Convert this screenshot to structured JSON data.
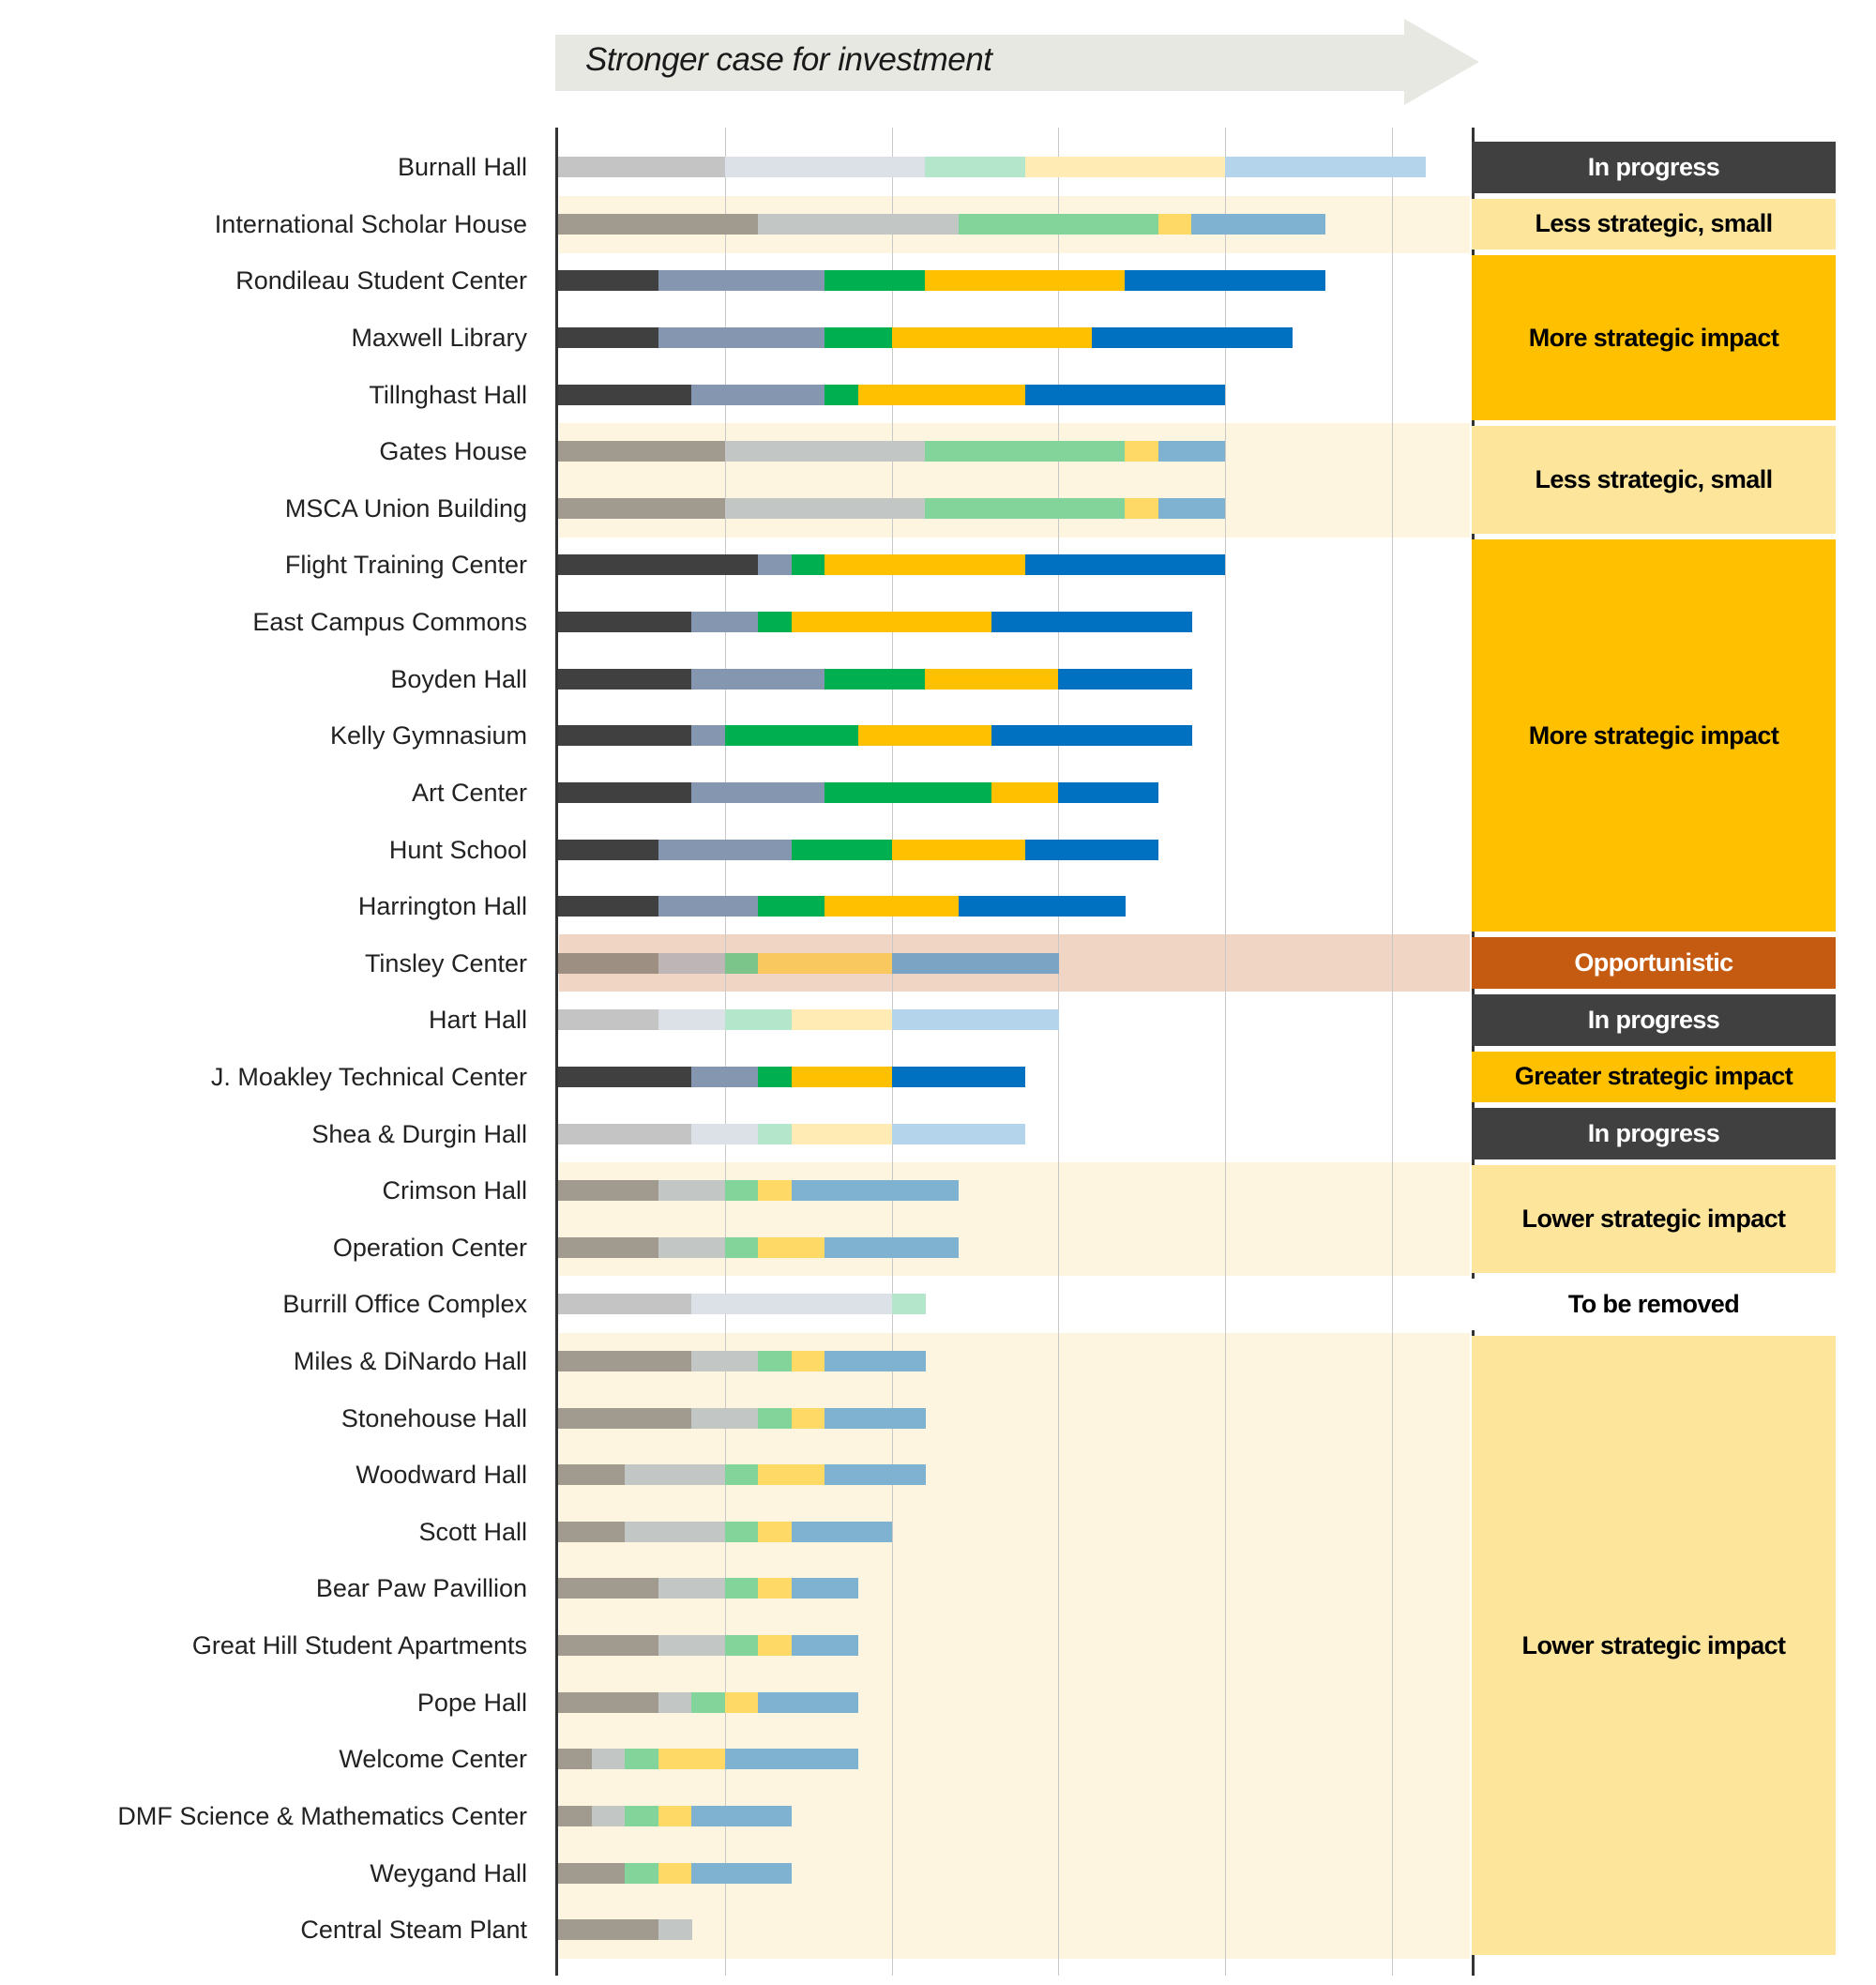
{
  "header": {
    "arrow_label": "Stronger case for investment"
  },
  "colors": {
    "arrow": "#E8E8E3",
    "tint_band": "#FEF5E0",
    "opp_band": "#F1D5C4",
    "axis": "#333333",
    "grid": "#C8C8C8",
    "palettes": {
      "full": [
        "#404040",
        "#8596B0",
        "#00B050",
        "#FFC000",
        "#0070C0"
      ],
      "muted": [
        "#A09A8F",
        "#C2C7C6",
        "#82D49B",
        "#FFD966",
        "#7FB1D0"
      ],
      "faded": [
        "#C4C4C4",
        "#DCE1E8",
        "#B4E6CB",
        "#FFEBB3",
        "#B3D4EA"
      ],
      "opp": [
        "#9E8F83",
        "#BEB5B6",
        "#7BC58A",
        "#F9C960",
        "#7AA3C4"
      ]
    },
    "panels": {
      "in_progress": {
        "bg": "#404040",
        "fg": "#FFFFFF"
      },
      "less_small": {
        "bg": "#FDE59C",
        "fg": "#000000"
      },
      "more": {
        "bg": "#FFC000",
        "fg": "#000000"
      },
      "opportunistic": {
        "bg": "#C55A11",
        "fg": "#FFFFFF"
      },
      "greater": {
        "bg": "#FFC000",
        "fg": "#000000"
      },
      "lower": {
        "bg": "#FDE59C",
        "fg": "#000000"
      },
      "removed": {
        "bg": "#FFFFFF",
        "fg": "#000000"
      }
    }
  },
  "panels": [
    {
      "label": "In progress",
      "kind": "in_progress",
      "rows": [
        0,
        0
      ]
    },
    {
      "label": "Less strategic, small",
      "kind": "less_small",
      "rows": [
        1,
        1
      ]
    },
    {
      "label": "More strategic impact",
      "kind": "more",
      "rows": [
        2,
        4
      ]
    },
    {
      "label": "Less strategic, small",
      "kind": "less_small",
      "rows": [
        5,
        6
      ]
    },
    {
      "label": "More strategic impact",
      "kind": "more",
      "rows": [
        7,
        13
      ]
    },
    {
      "label": "Opportunistic",
      "kind": "opportunistic",
      "rows": [
        14,
        14
      ]
    },
    {
      "label": "In progress",
      "kind": "in_progress",
      "rows": [
        15,
        15
      ]
    },
    {
      "label": "Greater strategic impact",
      "kind": "greater",
      "rows": [
        16,
        16
      ]
    },
    {
      "label": "In progress",
      "kind": "in_progress",
      "rows": [
        17,
        17
      ]
    },
    {
      "label": "Lower strategic impact",
      "kind": "lower",
      "rows": [
        18,
        19
      ]
    },
    {
      "label": "To be removed",
      "kind": "removed",
      "rows": [
        20,
        20
      ]
    },
    {
      "label": "Lower strategic impact",
      "kind": "lower",
      "rows": [
        21,
        31
      ]
    }
  ],
  "chart_data": {
    "type": "bar",
    "orientation": "horizontal",
    "stacked": true,
    "title": "Stronger case for investment",
    "xlabel": "",
    "ylabel": "",
    "xlim": [
      0,
      27.4
    ],
    "x_gridlines": [
      5,
      10,
      15,
      20,
      25
    ],
    "grid": true,
    "legend": "none",
    "rows": [
      {
        "name": "Burnall Hall",
        "segments": [
          5,
          6,
          3,
          6,
          6
        ]
      },
      {
        "name": "International Scholar House",
        "segments": [
          6,
          6,
          6,
          1,
          4
        ]
      },
      {
        "name": "Rondileau Student Center",
        "segments": [
          3,
          5,
          3,
          6,
          6
        ]
      },
      {
        "name": "Maxwell Library",
        "segments": [
          3,
          5,
          2,
          6,
          6
        ]
      },
      {
        "name": "Tillnghast Hall",
        "segments": [
          4,
          4,
          1,
          5,
          6
        ]
      },
      {
        "name": "Gates House",
        "segments": [
          5,
          6,
          6,
          1,
          2
        ]
      },
      {
        "name": "MSCA Union Building",
        "segments": [
          5,
          6,
          6,
          1,
          2
        ]
      },
      {
        "name": "Flight Training Center",
        "segments": [
          6,
          1,
          1,
          6,
          6
        ]
      },
      {
        "name": "East Campus Commons",
        "segments": [
          4,
          2,
          1,
          6,
          6
        ]
      },
      {
        "name": "Boyden Hall",
        "segments": [
          4,
          4,
          3,
          4,
          4
        ]
      },
      {
        "name": "Kelly Gymnasium",
        "segments": [
          4,
          1,
          4,
          4,
          6
        ]
      },
      {
        "name": "Art Center",
        "segments": [
          4,
          4,
          5,
          2,
          3
        ]
      },
      {
        "name": "Hunt School",
        "segments": [
          3,
          4,
          3,
          4,
          4
        ]
      },
      {
        "name": "Harrington Hall",
        "segments": [
          3,
          3,
          2,
          4,
          5
        ]
      },
      {
        "name": "Tinsley Center",
        "segments": [
          3,
          2,
          1,
          4,
          5
        ]
      },
      {
        "name": "Hart Hall",
        "segments": [
          3,
          2,
          2,
          3,
          5
        ]
      },
      {
        "name": "J. Moakley Technical Center",
        "segments": [
          4,
          2,
          1,
          3,
          4
        ]
      },
      {
        "name": "Shea & Durgin Hall",
        "segments": [
          4,
          2,
          1,
          3,
          4
        ]
      },
      {
        "name": "Crimson Hall",
        "segments": [
          3,
          2,
          1,
          1,
          5
        ]
      },
      {
        "name": "Operation Center",
        "segments": [
          3,
          2,
          1,
          2,
          4
        ]
      },
      {
        "name": "Burrill Office Complex",
        "segments": [
          4,
          6,
          1,
          0,
          0
        ]
      },
      {
        "name": "Miles & DiNardo Hall",
        "segments": [
          4,
          2,
          1,
          1,
          3
        ]
      },
      {
        "name": "Stonehouse Hall",
        "segments": [
          4,
          2,
          1,
          1,
          3
        ]
      },
      {
        "name": "Woodward Hall",
        "segments": [
          2,
          3,
          1,
          2,
          3
        ]
      },
      {
        "name": "Scott Hall",
        "segments": [
          2,
          3,
          1,
          1,
          3
        ]
      },
      {
        "name": "Bear Paw Pavillion",
        "segments": [
          3,
          2,
          1,
          1,
          2
        ]
      },
      {
        "name": "Great Hill Student Apartments",
        "segments": [
          3,
          2,
          1,
          1,
          2
        ]
      },
      {
        "name": "Pope Hall",
        "segments": [
          3,
          1,
          1,
          1,
          3
        ]
      },
      {
        "name": "Welcome Center",
        "segments": [
          1,
          1,
          1,
          2,
          4
        ]
      },
      {
        "name": "DMF Science & Mathematics Center",
        "segments": [
          1,
          1,
          1,
          1,
          3
        ]
      },
      {
        "name": "Weygand Hall",
        "segments": [
          2,
          0,
          1,
          1,
          3
        ]
      },
      {
        "name": "Central Steam Plant",
        "segments": [
          3,
          1,
          0,
          0,
          0
        ]
      }
    ]
  }
}
